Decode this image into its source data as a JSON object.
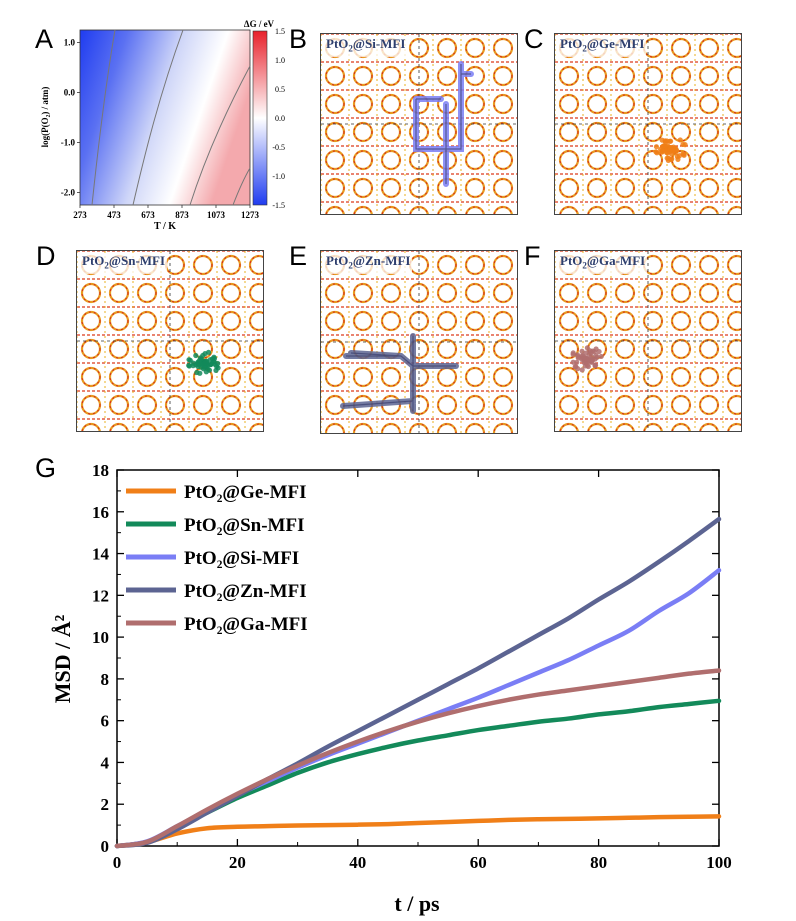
{
  "letters": [
    "A",
    "B",
    "C",
    "D",
    "E",
    "F",
    "G"
  ],
  "panel_a": {
    "title": "ΔG / eV",
    "xlabel": "T / K",
    "ylabel": "log(P(O₂) / atm)",
    "x_ticks": [
      "273",
      "473",
      "673",
      "873",
      "1073",
      "1273"
    ],
    "y_ticks": [
      "1.0",
      "0.0",
      "-1.0",
      "-2.0"
    ],
    "colorbar_ticks": [
      "1.5",
      "1.0",
      "0.5",
      "0.0",
      "-0.5",
      "-1.0",
      "-1.5"
    ],
    "colors": {
      "negative": "#1f3cf0",
      "zero": "#ffffff",
      "positive": "#e8212b"
    }
  },
  "structures": [
    {
      "id": "B",
      "label_pre": "PtO",
      "label_sub": "2",
      "label_post": "@Si-MFI",
      "traj": "#7a7ef5",
      "kind": "path"
    },
    {
      "id": "C",
      "label_pre": "PtO",
      "label_sub": "2",
      "label_post": "@Ge-MFI",
      "traj": "#f07f18",
      "kind": "blob"
    },
    {
      "id": "D",
      "label_pre": "PtO",
      "label_sub": "2",
      "label_post": "@Sn-MFI",
      "traj": "#138a5a",
      "kind": "blob"
    },
    {
      "id": "E",
      "label_pre": "PtO",
      "label_sub": "2",
      "label_post": "@Zn-MFI",
      "traj": "#5c6492",
      "kind": "path"
    },
    {
      "id": "F",
      "label_pre": "PtO",
      "label_sub": "2",
      "label_post": "@Ga-MFI",
      "traj": "#b06e6e",
      "kind": "blob"
    }
  ],
  "chart_data": {
    "type": "line",
    "xlabel": "t / ps",
    "ylabel": "MSD / Å²",
    "xlim": [
      0,
      100
    ],
    "ylim": [
      0,
      18
    ],
    "x_ticks": [
      0,
      20,
      40,
      60,
      80,
      100
    ],
    "y_ticks": [
      0,
      2,
      4,
      6,
      8,
      10,
      12,
      14,
      16,
      18
    ],
    "legend_position": "top-left",
    "x": [
      0,
      5,
      10,
      15,
      20,
      25,
      30,
      35,
      40,
      45,
      50,
      55,
      60,
      65,
      70,
      75,
      80,
      85,
      90,
      95,
      100
    ],
    "series": [
      {
        "name": "PtO₂@Ge-MFI",
        "color": "#f07f18",
        "values": [
          0,
          0.18,
          0.6,
          0.85,
          0.92,
          0.95,
          0.98,
          1.0,
          1.02,
          1.05,
          1.1,
          1.15,
          1.2,
          1.25,
          1.28,
          1.3,
          1.32,
          1.35,
          1.38,
          1.4,
          1.42
        ]
      },
      {
        "name": "PtO₂@Sn-MFI",
        "color": "#138a5a",
        "values": [
          0,
          0.2,
          0.9,
          1.6,
          2.3,
          2.9,
          3.5,
          4.0,
          4.4,
          4.75,
          5.05,
          5.3,
          5.55,
          5.75,
          5.95,
          6.1,
          6.3,
          6.45,
          6.65,
          6.8,
          6.95
        ]
      },
      {
        "name": "PtO₂@Si-MFI",
        "color": "#7a7ef5",
        "values": [
          0,
          0.22,
          0.95,
          1.7,
          2.45,
          3.1,
          3.75,
          4.35,
          4.9,
          5.45,
          6.0,
          6.55,
          7.1,
          7.7,
          8.3,
          8.9,
          9.6,
          10.3,
          11.25,
          12.1,
          13.2
        ]
      },
      {
        "name": "PtO₂@Zn-MFI",
        "color": "#5c6492",
        "values": [
          0,
          0.15,
          0.8,
          1.6,
          2.4,
          3.2,
          3.95,
          4.75,
          5.5,
          6.25,
          7.0,
          7.75,
          8.5,
          9.3,
          10.1,
          10.9,
          11.8,
          12.65,
          13.6,
          14.6,
          15.65
        ]
      },
      {
        "name": "PtO₂@Ga-MFI",
        "color": "#b06e6e",
        "values": [
          0,
          0.2,
          0.95,
          1.75,
          2.5,
          3.2,
          3.85,
          4.45,
          5.0,
          5.5,
          5.95,
          6.35,
          6.7,
          7.0,
          7.25,
          7.45,
          7.65,
          7.85,
          8.05,
          8.25,
          8.4
        ]
      }
    ]
  }
}
